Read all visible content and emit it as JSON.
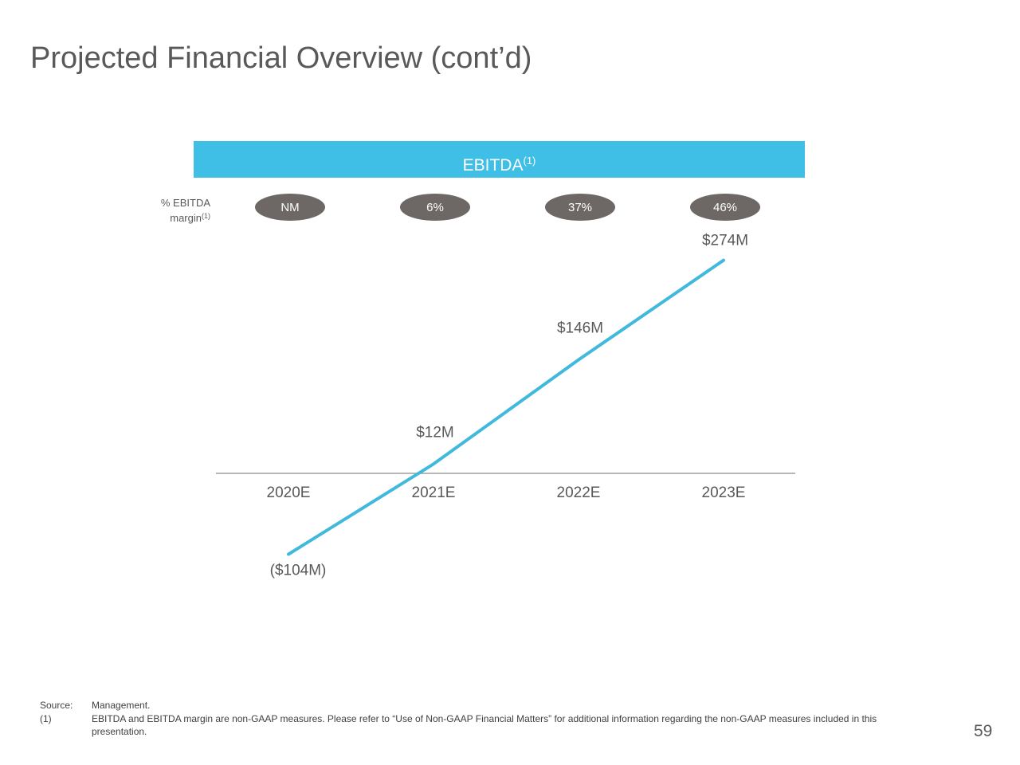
{
  "title": "Projected Financial Overview (cont’d)",
  "chart_data": {
    "type": "line",
    "title": "EBITDA",
    "title_note": "(1)",
    "margin_label": "% EBITDA margin",
    "margin_label_note": "(1)",
    "margins": [
      "NM",
      "6%",
      "37%",
      "46%"
    ],
    "categories": [
      "2020E",
      "2021E",
      "2022E",
      "2023E"
    ],
    "values": [
      -104,
      12,
      146,
      274
    ],
    "value_labels": [
      "($104M)",
      "$12M",
      "$146M",
      "$274M"
    ],
    "color": "#41b9dc"
  },
  "footnotes": {
    "source_label": "Source:",
    "source": "Management.",
    "note_label": "(1)",
    "note": "EBITDA and EBITDA margin are non-GAAP measures. Please refer to “Use of Non-GAAP Financial Matters” for additional information regarding the non-GAAP measures included in this presentation."
  },
  "page_number": "59"
}
